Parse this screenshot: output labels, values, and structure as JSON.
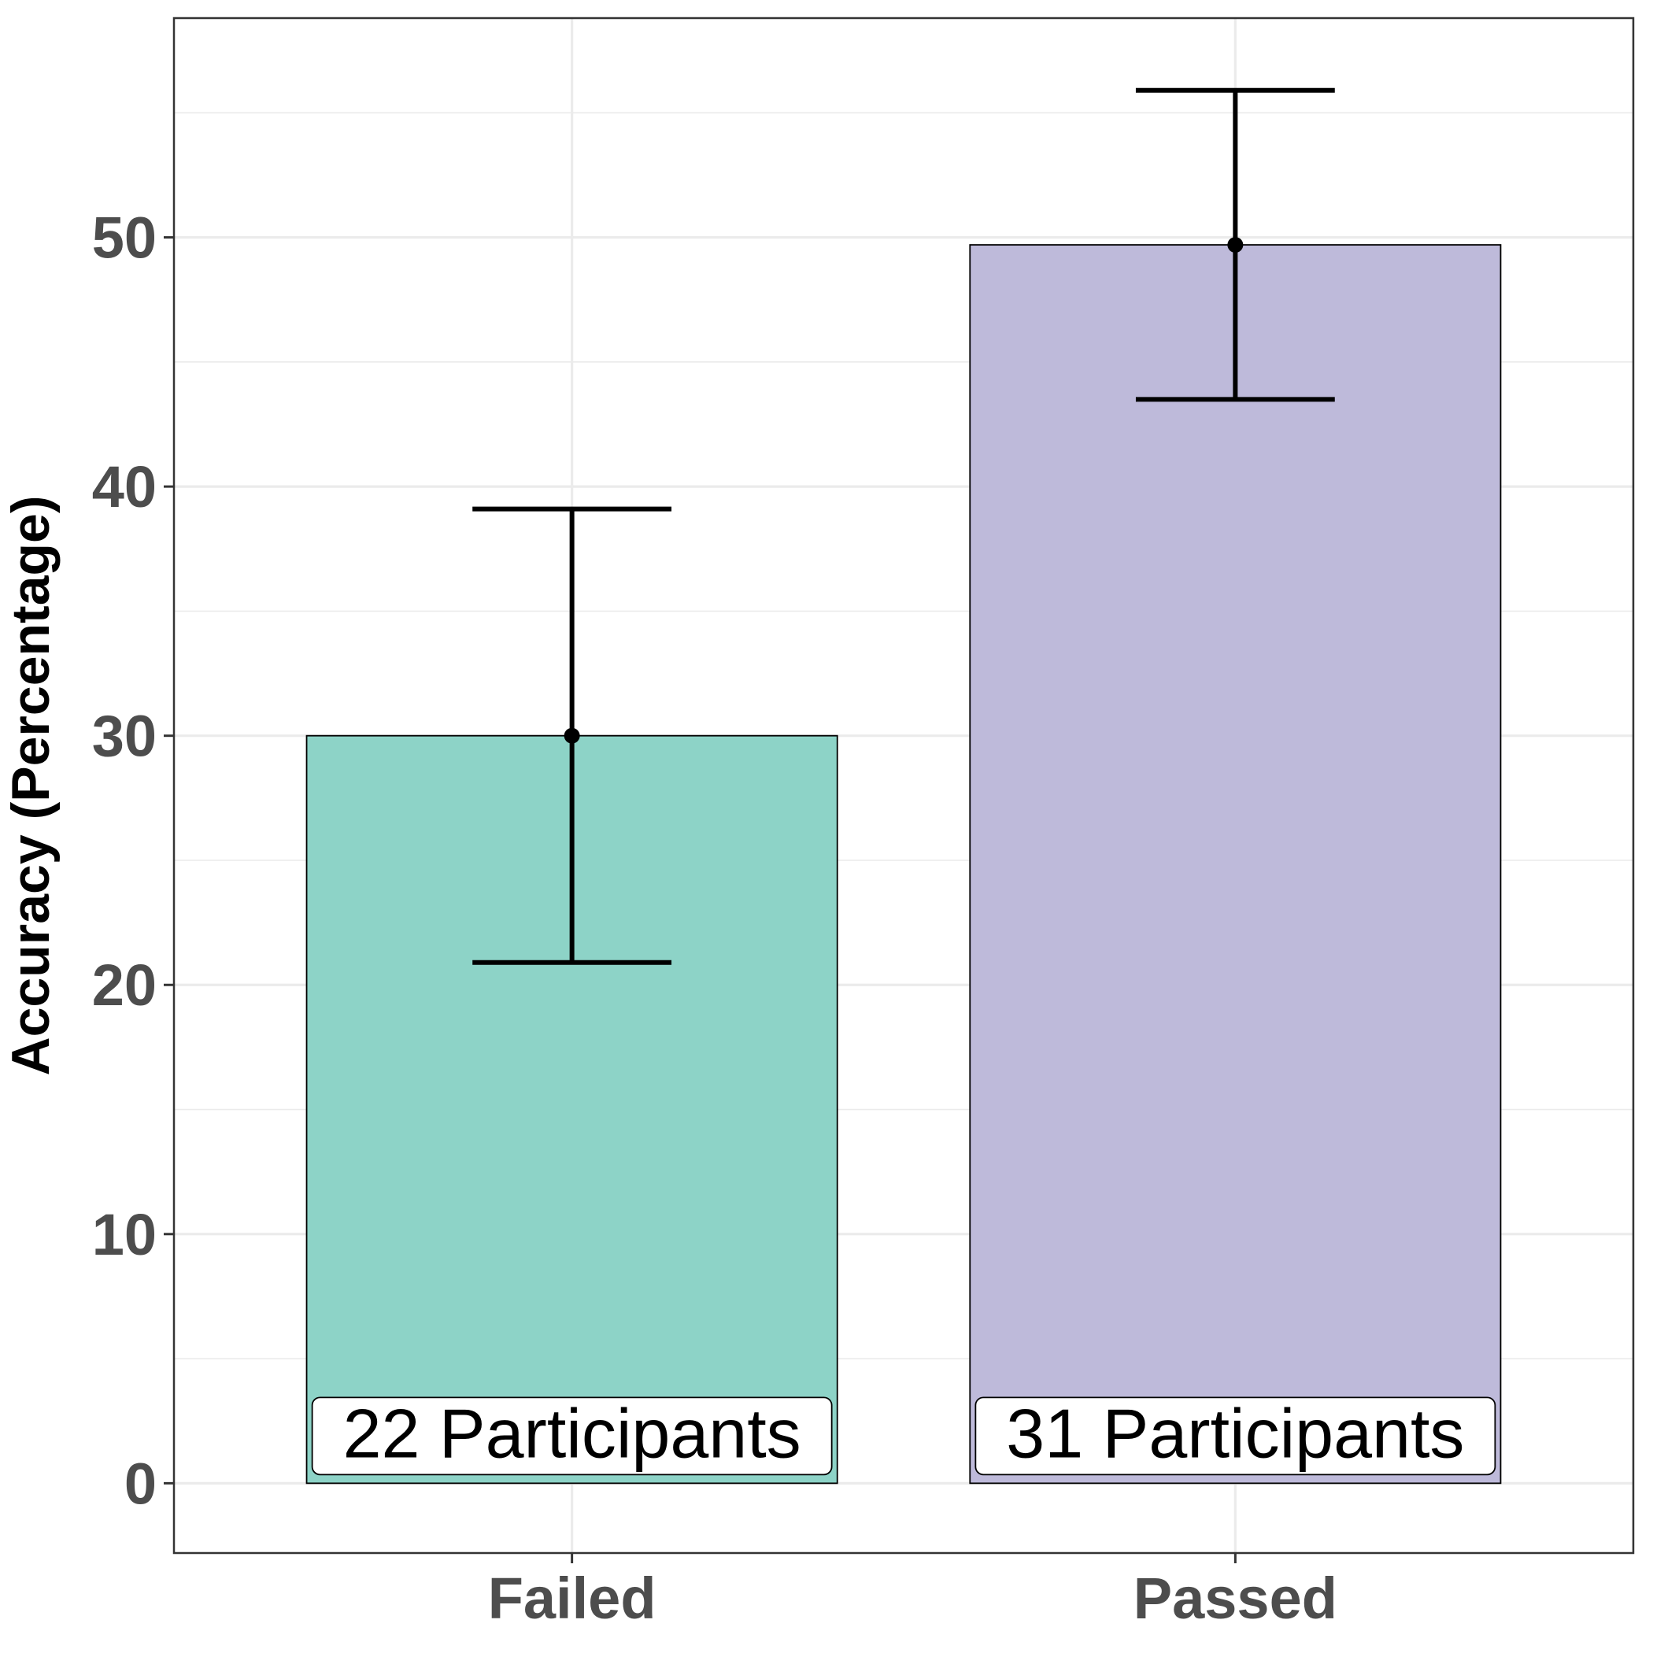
{
  "chart_data": {
    "type": "bar",
    "title": "",
    "xlabel": "",
    "ylabel": "Accuracy (Percentage)",
    "categories": [
      "Failed",
      "Passed"
    ],
    "values": [
      30.0,
      49.7
    ],
    "error_low": [
      20.9,
      43.5
    ],
    "error_high": [
      39.1,
      55.9
    ],
    "bar_labels": [
      "22 Participants",
      "31 Participants"
    ],
    "bar_colors": [
      "#8dd3c7",
      "#bebada"
    ],
    "ylim": [
      -2.8,
      58.8
    ],
    "yticks": [
      0,
      10,
      20,
      30,
      40,
      50
    ],
    "ytick_labels": [
      "0",
      "10",
      "20",
      "30",
      "40",
      "50"
    ],
    "grid": true,
    "legend": "none"
  }
}
